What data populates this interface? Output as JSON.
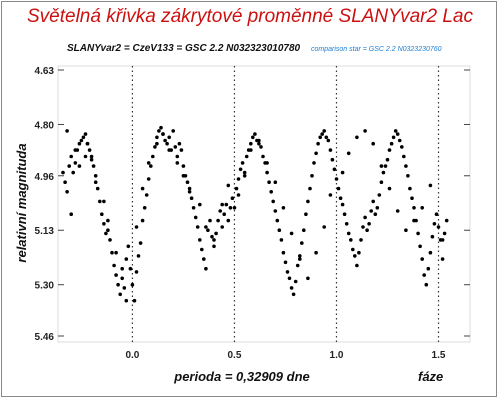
{
  "title": "Světelná křivka zákrytové proměnné SLANYvar2 Lac",
  "subtitle": "SLANYvar2 = CzeV133 = GSC 2.2 N032323010780",
  "comparison": "comparison star = GSC 2.2 N0323230760",
  "colors": {
    "title": "#cc1010",
    "comparison": "#1e7fd6",
    "points": "#000000",
    "frame": "#8a8a8a"
  },
  "chart_data": {
    "type": "scatter",
    "xlabel": "perioda = 0,32909 dne",
    "xlabel_right": "fáze",
    "ylabel": "relativní magnituda",
    "xlim": [
      -0.35,
      1.62
    ],
    "ylim": [
      4.63,
      5.46
    ],
    "y_inverted": true,
    "xticks": [
      "0.0",
      "0.5",
      "1.0",
      "1.5"
    ],
    "xtick_values": [
      0.0,
      0.5,
      1.0,
      1.5
    ],
    "yticks": [
      "4.63",
      "4.80",
      "4.96",
      "5.13",
      "5.30",
      "5.46"
    ],
    "ytick_values": [
      4.63,
      4.8,
      4.96,
      5.13,
      5.3,
      5.46
    ],
    "vlines": [
      0.0,
      0.5,
      1.0,
      1.5
    ],
    "grid": false,
    "x": [
      -0.34,
      -0.33,
      -0.32,
      -0.31,
      -0.3,
      -0.3,
      -0.29,
      -0.28,
      -0.27,
      -0.26,
      -0.25,
      -0.24,
      -0.23,
      -0.23,
      -0.22,
      -0.21,
      -0.2,
      -0.19,
      -0.18,
      -0.17,
      -0.16,
      -0.15,
      -0.14,
      -0.13,
      -0.12,
      -0.11,
      -0.1,
      -0.09,
      -0.08,
      -0.07,
      -0.06,
      -0.05,
      -0.04,
      -0.03,
      -0.02,
      -0.01,
      0.0,
      0.01,
      0.02,
      0.03,
      0.04,
      0.05,
      0.06,
      0.07,
      0.08,
      0.09,
      0.1,
      0.11,
      0.12,
      0.13,
      0.14,
      0.15,
      0.16,
      0.17,
      0.18,
      0.19,
      0.2,
      0.21,
      0.22,
      0.23,
      0.24,
      0.25,
      0.26,
      0.27,
      0.28,
      0.29,
      0.3,
      0.31,
      0.32,
      0.33,
      0.34,
      0.35,
      0.36,
      0.37,
      0.38,
      0.39,
      0.4,
      0.41,
      0.42,
      0.43,
      0.44,
      0.45,
      0.46,
      0.47,
      0.48,
      0.49,
      0.5,
      0.51,
      0.52,
      0.53,
      0.54,
      0.55,
      0.56,
      0.57,
      0.58,
      0.59,
      0.6,
      0.61,
      0.62,
      0.63,
      0.64,
      0.65,
      0.66,
      0.67,
      0.68,
      0.69,
      0.7,
      0.71,
      0.72,
      0.73,
      0.74,
      0.75,
      0.76,
      0.77,
      0.78,
      0.79,
      0.8,
      0.81,
      0.82,
      0.83,
      0.84,
      0.85,
      0.86,
      0.87,
      0.88,
      0.89,
      0.9,
      0.91,
      0.92,
      0.93,
      0.94,
      0.95,
      0.96,
      0.97,
      0.98,
      0.99,
      1.0,
      1.01,
      1.02,
      1.03,
      1.04,
      1.05,
      1.06,
      1.07,
      1.08,
      1.09,
      1.1,
      1.11,
      1.12,
      1.13,
      1.14,
      1.15,
      1.16,
      1.17,
      1.18,
      1.19,
      1.2,
      1.21,
      1.22,
      1.23,
      1.24,
      1.25,
      1.26,
      1.27,
      1.28,
      1.29,
      1.3,
      1.31,
      1.32,
      1.33,
      1.34,
      1.35,
      1.36,
      1.37,
      1.38,
      1.39,
      1.4,
      1.41,
      1.42,
      1.43,
      1.44,
      1.45,
      1.46,
      1.47,
      1.48,
      1.49,
      1.5,
      1.51,
      1.52,
      1.53,
      1.54,
      -0.32,
      -0.28,
      -0.26,
      -0.22,
      -0.2,
      -0.18,
      -0.14,
      -0.12,
      -0.08,
      -0.05,
      -0.03,
      0.02,
      0.05,
      0.08,
      0.12,
      0.15,
      0.18,
      0.22,
      0.25,
      0.28,
      0.33,
      0.36,
      0.4,
      0.44,
      0.47,
      0.52,
      0.55,
      0.58,
      0.62,
      0.66,
      0.7,
      0.74,
      0.78,
      0.82,
      0.86,
      0.9,
      0.94,
      0.97,
      1.03,
      1.06,
      1.1,
      1.14,
      1.18,
      1.22,
      1.26,
      1.3,
      1.34,
      1.38,
      1.42,
      1.46,
      1.52
    ],
    "y": [
      4.95,
      4.98,
      5.01,
      4.93,
      4.9,
      5.08,
      4.95,
      4.92,
      4.88,
      4.86,
      4.85,
      4.84,
      4.83,
      4.9,
      4.86,
      4.88,
      4.91,
      4.93,
      4.96,
      5.0,
      5.04,
      5.08,
      5.11,
      5.14,
      5.13,
      5.16,
      5.2,
      5.24,
      5.27,
      5.3,
      5.33,
      5.28,
      5.31,
      5.22,
      5.18,
      5.25,
      5.3,
      5.35,
      5.26,
      5.21,
      5.17,
      5.1,
      5.06,
      5.02,
      4.97,
      4.93,
      4.9,
      4.87,
      4.84,
      4.82,
      4.81,
      4.83,
      4.85,
      4.86,
      4.84,
      4.88,
      4.82,
      4.87,
      4.9,
      4.86,
      4.88,
      4.93,
      4.96,
      4.98,
      5.01,
      5.03,
      5.06,
      5.09,
      5.12,
      5.16,
      5.19,
      5.22,
      5.25,
      5.13,
      5.1,
      5.15,
      5.18,
      5.14,
      5.1,
      5.07,
      5.12,
      5.08,
      5.05,
      5.1,
      5.06,
      5.03,
      5.06,
      5.0,
      4.97,
      4.94,
      4.92,
      4.96,
      4.9,
      4.88,
      4.86,
      4.84,
      4.83,
      4.85,
      4.86,
      4.87,
      4.9,
      4.92,
      4.95,
      4.98,
      5.01,
      5.04,
      5.07,
      5.1,
      5.13,
      5.16,
      5.2,
      5.23,
      5.26,
      5.28,
      5.31,
      5.33,
      5.29,
      5.24,
      5.21,
      5.17,
      5.13,
      5.08,
      5.04,
      5.0,
      4.96,
      4.92,
      4.89,
      4.86,
      4.84,
      4.83,
      4.82,
      4.84,
      4.85,
      4.88,
      4.91,
      4.94,
      4.97,
      5.0,
      5.03,
      5.05,
      5.08,
      5.11,
      5.14,
      5.16,
      5.19,
      5.21,
      5.24,
      5.2,
      5.16,
      5.12,
      5.09,
      5.13,
      5.11,
      5.07,
      5.04,
      5.08,
      5.06,
      5.02,
      4.98,
      4.95,
      4.93,
      4.91,
      4.88,
      4.86,
      4.84,
      4.82,
      4.83,
      4.85,
      4.87,
      4.9,
      4.93,
      4.96,
      5.0,
      5.03,
      5.06,
      5.1,
      5.14,
      5.18,
      5.22,
      5.27,
      5.3,
      5.25,
      5.2,
      5.15,
      5.11,
      5.08,
      5.12,
      5.16,
      5.22,
      5.14,
      5.1,
      4.82,
      4.88,
      4.93,
      4.86,
      4.9,
      4.98,
      5.04,
      5.1,
      5.2,
      5.25,
      5.35,
      5.12,
      5.0,
      4.92,
      4.86,
      4.83,
      4.88,
      4.92,
      4.96,
      5.0,
      5.05,
      5.12,
      5.16,
      5.05,
      4.99,
      5.02,
      4.95,
      4.88,
      4.85,
      4.92,
      4.98,
      5.06,
      5.14,
      5.22,
      5.28,
      5.2,
      5.12,
      5.02,
      4.95,
      4.89,
      4.84,
      4.82,
      4.86,
      4.93,
      5.0,
      5.07,
      5.13,
      5.1,
      5.06,
      4.99,
      5.16
    ]
  }
}
